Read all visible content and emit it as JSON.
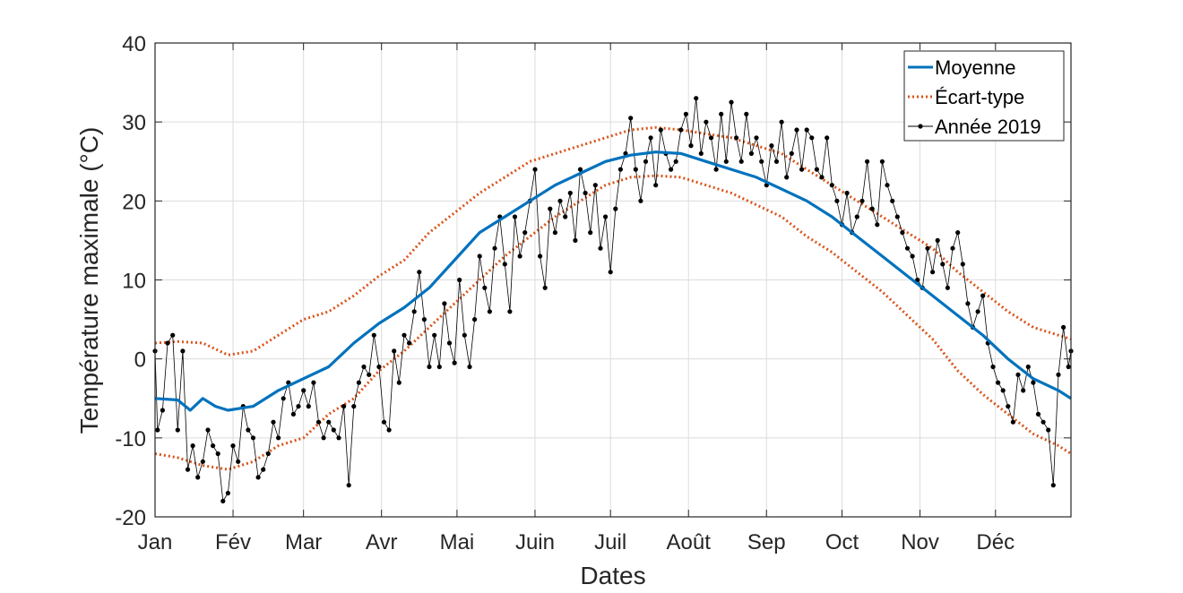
{
  "chart_data": {
    "type": "line",
    "title": "",
    "xlabel": "Dates",
    "ylabel": "Température maximale (°C)",
    "xlim": [
      1,
      365
    ],
    "ylim": [
      -20,
      40
    ],
    "grid": true,
    "legend_position": "top-right",
    "x_ticks": [
      {
        "label": "Jan",
        "day": 1
      },
      {
        "label": "Fév",
        "day": 32
      },
      {
        "label": "Mar",
        "day": 60
      },
      {
        "label": "Avr",
        "day": 91
      },
      {
        "label": "Mai",
        "day": 121
      },
      {
        "label": "Juin",
        "day": 152
      },
      {
        "label": "Juil",
        "day": 182
      },
      {
        "label": "Août",
        "day": 213
      },
      {
        "label": "Sep",
        "day": 244
      },
      {
        "label": "Oct",
        "day": 274
      },
      {
        "label": "Nov",
        "day": 305
      },
      {
        "label": "Déc",
        "day": 335
      }
    ],
    "y_ticks": [
      -20,
      -10,
      0,
      10,
      20,
      30,
      40
    ],
    "y_tick_labels": [
      "-20",
      "-10",
      "0",
      "10",
      "20",
      "30",
      "40"
    ],
    "series": [
      {
        "name": "Moyenne",
        "color": "#0072BD",
        "style": "solid",
        "points": [
          [
            1,
            -5
          ],
          [
            10,
            -5.2
          ],
          [
            15,
            -6.5
          ],
          [
            20,
            -5
          ],
          [
            25,
            -6
          ],
          [
            30,
            -6.5
          ],
          [
            40,
            -6
          ],
          [
            50,
            -4
          ],
          [
            60,
            -2.5
          ],
          [
            70,
            -1
          ],
          [
            80,
            2
          ],
          [
            90,
            4.5
          ],
          [
            100,
            6.5
          ],
          [
            110,
            9
          ],
          [
            120,
            12.5
          ],
          [
            130,
            16
          ],
          [
            140,
            18
          ],
          [
            150,
            20
          ],
          [
            160,
            22
          ],
          [
            170,
            23.5
          ],
          [
            180,
            25
          ],
          [
            190,
            25.8
          ],
          [
            200,
            26.2
          ],
          [
            210,
            26
          ],
          [
            220,
            25
          ],
          [
            230,
            24
          ],
          [
            240,
            23
          ],
          [
            250,
            21.5
          ],
          [
            260,
            20
          ],
          [
            270,
            18
          ],
          [
            280,
            15.5
          ],
          [
            290,
            13
          ],
          [
            300,
            10.5
          ],
          [
            310,
            8
          ],
          [
            320,
            5.5
          ],
          [
            330,
            3
          ],
          [
            340,
            0
          ],
          [
            350,
            -2.5
          ],
          [
            360,
            -4
          ],
          [
            365,
            -5
          ]
        ]
      },
      {
        "name": "Écart-type",
        "color": "#D95319",
        "style": "dotted",
        "upper": [
          [
            1,
            2
          ],
          [
            10,
            2.2
          ],
          [
            20,
            2
          ],
          [
            30,
            0.5
          ],
          [
            40,
            1
          ],
          [
            50,
            3
          ],
          [
            60,
            5
          ],
          [
            70,
            6
          ],
          [
            80,
            8
          ],
          [
            90,
            10.5
          ],
          [
            100,
            12.5
          ],
          [
            110,
            16
          ],
          [
            120,
            18.5
          ],
          [
            130,
            21
          ],
          [
            140,
            23
          ],
          [
            150,
            25
          ],
          [
            160,
            26
          ],
          [
            170,
            27
          ],
          [
            180,
            28
          ],
          [
            190,
            29
          ],
          [
            200,
            29.3
          ],
          [
            210,
            29
          ],
          [
            220,
            28.5
          ],
          [
            230,
            28
          ],
          [
            240,
            27
          ],
          [
            250,
            26
          ],
          [
            260,
            24
          ],
          [
            270,
            22
          ],
          [
            280,
            20
          ],
          [
            290,
            18
          ],
          [
            300,
            16
          ],
          [
            310,
            14
          ],
          [
            320,
            11
          ],
          [
            330,
            8.5
          ],
          [
            340,
            6
          ],
          [
            350,
            4
          ],
          [
            360,
            3
          ],
          [
            365,
            2.5
          ]
        ],
        "lower": [
          [
            1,
            -12
          ],
          [
            10,
            -12.5
          ],
          [
            20,
            -13.5
          ],
          [
            30,
            -14
          ],
          [
            40,
            -13
          ],
          [
            50,
            -11
          ],
          [
            60,
            -10
          ],
          [
            70,
            -7
          ],
          [
            80,
            -5
          ],
          [
            90,
            -1.5
          ],
          [
            100,
            1
          ],
          [
            110,
            4
          ],
          [
            120,
            7
          ],
          [
            130,
            10
          ],
          [
            140,
            13
          ],
          [
            150,
            15.5
          ],
          [
            160,
            18
          ],
          [
            170,
            20
          ],
          [
            180,
            22
          ],
          [
            190,
            23
          ],
          [
            200,
            23.2
          ],
          [
            210,
            23
          ],
          [
            220,
            22
          ],
          [
            230,
            21
          ],
          [
            240,
            19.5
          ],
          [
            250,
            18
          ],
          [
            260,
            15.5
          ],
          [
            270,
            13.5
          ],
          [
            280,
            11
          ],
          [
            290,
            8.5
          ],
          [
            300,
            5.5
          ],
          [
            310,
            2.5
          ],
          [
            320,
            -1.5
          ],
          [
            330,
            -4.5
          ],
          [
            340,
            -7
          ],
          [
            350,
            -9.5
          ],
          [
            360,
            -11
          ],
          [
            365,
            -12
          ]
        ]
      },
      {
        "name": "Année 2019",
        "color": "#000000",
        "style": "line-markers",
        "points": [
          [
            1,
            1
          ],
          [
            2,
            -9
          ],
          [
            4,
            -6.5
          ],
          [
            6,
            2
          ],
          [
            8,
            3
          ],
          [
            10,
            -9
          ],
          [
            12,
            1
          ],
          [
            14,
            -14
          ],
          [
            16,
            -11
          ],
          [
            18,
            -15
          ],
          [
            20,
            -13
          ],
          [
            22,
            -9
          ],
          [
            24,
            -11
          ],
          [
            26,
            -12
          ],
          [
            28,
            -18
          ],
          [
            30,
            -17
          ],
          [
            32,
            -11
          ],
          [
            34,
            -13
          ],
          [
            36,
            -6
          ],
          [
            38,
            -9
          ],
          [
            40,
            -10
          ],
          [
            42,
            -15
          ],
          [
            44,
            -14
          ],
          [
            46,
            -12
          ],
          [
            48,
            -8
          ],
          [
            50,
            -10
          ],
          [
            52,
            -5
          ],
          [
            54,
            -3
          ],
          [
            56,
            -7
          ],
          [
            58,
            -6
          ],
          [
            60,
            -4
          ],
          [
            62,
            -6
          ],
          [
            64,
            -3
          ],
          [
            66,
            -8
          ],
          [
            68,
            -10
          ],
          [
            70,
            -8
          ],
          [
            72,
            -9
          ],
          [
            74,
            -10
          ],
          [
            76,
            -6
          ],
          [
            78,
            -16
          ],
          [
            80,
            -6
          ],
          [
            82,
            -3
          ],
          [
            84,
            -1
          ],
          [
            86,
            -2
          ],
          [
            88,
            3
          ],
          [
            90,
            -1
          ],
          [
            92,
            -8
          ],
          [
            94,
            -9
          ],
          [
            96,
            1
          ],
          [
            98,
            -3
          ],
          [
            100,
            3
          ],
          [
            102,
            2
          ],
          [
            104,
            6
          ],
          [
            106,
            11
          ],
          [
            108,
            5
          ],
          [
            110,
            -1
          ],
          [
            112,
            3
          ],
          [
            114,
            -1
          ],
          [
            116,
            7
          ],
          [
            118,
            2
          ],
          [
            120,
            -0.5
          ],
          [
            122,
            10
          ],
          [
            124,
            3
          ],
          [
            126,
            -1
          ],
          [
            128,
            5
          ],
          [
            130,
            13
          ],
          [
            132,
            9
          ],
          [
            134,
            6
          ],
          [
            136,
            14
          ],
          [
            138,
            18
          ],
          [
            140,
            12
          ],
          [
            142,
            6
          ],
          [
            144,
            18
          ],
          [
            146,
            13
          ],
          [
            148,
            16
          ],
          [
            150,
            20
          ],
          [
            152,
            24
          ],
          [
            154,
            13
          ],
          [
            156,
            9
          ],
          [
            158,
            19
          ],
          [
            160,
            16
          ],
          [
            162,
            20
          ],
          [
            164,
            18
          ],
          [
            166,
            21
          ],
          [
            168,
            15
          ],
          [
            170,
            24
          ],
          [
            172,
            21
          ],
          [
            174,
            16
          ],
          [
            176,
            22
          ],
          [
            178,
            14
          ],
          [
            180,
            18
          ],
          [
            182,
            11
          ],
          [
            184,
            19
          ],
          [
            186,
            24
          ],
          [
            188,
            26
          ],
          [
            190,
            30.5
          ],
          [
            192,
            24
          ],
          [
            194,
            20
          ],
          [
            196,
            25
          ],
          [
            198,
            28
          ],
          [
            200,
            22
          ],
          [
            202,
            29
          ],
          [
            204,
            26
          ],
          [
            206,
            24
          ],
          [
            208,
            25
          ],
          [
            210,
            29
          ],
          [
            212,
            31
          ],
          [
            214,
            27
          ],
          [
            216,
            33
          ],
          [
            218,
            26
          ],
          [
            220,
            30
          ],
          [
            222,
            28
          ],
          [
            224,
            24
          ],
          [
            226,
            31
          ],
          [
            228,
            25
          ],
          [
            230,
            32.5
          ],
          [
            232,
            28
          ],
          [
            234,
            25
          ],
          [
            236,
            31
          ],
          [
            238,
            26
          ],
          [
            240,
            28
          ],
          [
            242,
            25
          ],
          [
            244,
            22
          ],
          [
            246,
            27
          ],
          [
            248,
            25
          ],
          [
            250,
            30
          ],
          [
            252,
            23
          ],
          [
            254,
            26
          ],
          [
            256,
            29
          ],
          [
            258,
            24
          ],
          [
            260,
            29
          ],
          [
            262,
            28
          ],
          [
            264,
            24
          ],
          [
            266,
            23
          ],
          [
            268,
            28
          ],
          [
            270,
            22
          ],
          [
            272,
            20
          ],
          [
            274,
            17
          ],
          [
            276,
            21
          ],
          [
            278,
            16
          ],
          [
            280,
            18
          ],
          [
            282,
            20
          ],
          [
            284,
            25
          ],
          [
            286,
            19
          ],
          [
            288,
            17
          ],
          [
            290,
            25
          ],
          [
            292,
            22
          ],
          [
            294,
            20
          ],
          [
            296,
            18
          ],
          [
            298,
            16
          ],
          [
            300,
            14
          ],
          [
            302,
            13
          ],
          [
            304,
            10
          ],
          [
            306,
            9
          ],
          [
            308,
            14
          ],
          [
            310,
            11
          ],
          [
            312,
            15
          ],
          [
            314,
            12
          ],
          [
            316,
            9
          ],
          [
            318,
            14
          ],
          [
            320,
            16
          ],
          [
            322,
            12
          ],
          [
            324,
            7
          ],
          [
            326,
            4
          ],
          [
            328,
            6
          ],
          [
            330,
            8
          ],
          [
            332,
            2
          ],
          [
            334,
            -1
          ],
          [
            336,
            -3
          ],
          [
            338,
            -4
          ],
          [
            340,
            -6
          ],
          [
            342,
            -8
          ],
          [
            344,
            -2
          ],
          [
            346,
            -4
          ],
          [
            348,
            -1
          ],
          [
            350,
            -3
          ],
          [
            352,
            -7
          ],
          [
            354,
            -8
          ],
          [
            356,
            -9
          ],
          [
            358,
            -16
          ],
          [
            360,
            -2
          ],
          [
            362,
            4
          ],
          [
            364,
            -1
          ],
          [
            365,
            1
          ]
        ]
      }
    ]
  }
}
